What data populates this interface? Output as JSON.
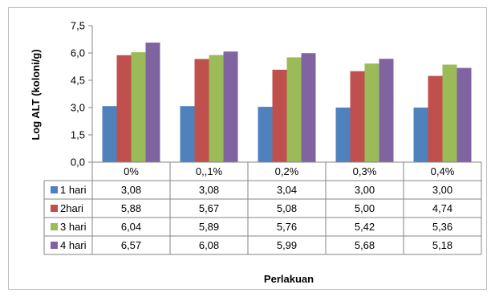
{
  "chart_data": {
    "type": "bar",
    "ylabel": "Log  ALT (koloni/g)",
    "xlabel": "Perlakuan",
    "ylim": [
      0,
      7.5
    ],
    "yticks": [
      "0,0",
      "1,5",
      "3,0",
      "4,5",
      "6,0",
      "7,5"
    ],
    "ytick_values": [
      0,
      1.5,
      3.0,
      4.5,
      6.0,
      7.5
    ],
    "categories": [
      "0%",
      "0,,1%",
      "0,2%",
      "0,3%",
      "0,4%"
    ],
    "grid": false,
    "legend_placement": "data-table",
    "series": [
      {
        "name": "1 hari",
        "color": "#4f81bd",
        "values": [
          3.08,
          3.08,
          3.04,
          3.0,
          3.0
        ],
        "labels": [
          "3,08",
          "3,08",
          "3,04",
          "3,00",
          "3,00"
        ]
      },
      {
        "name": "2hari",
        "color": "#c0504d",
        "values": [
          5.88,
          5.67,
          5.08,
          5.0,
          4.74
        ],
        "labels": [
          "5,88",
          "5,67",
          "5,08",
          "5,00",
          "4,74"
        ]
      },
      {
        "name": "3 hari",
        "color": "#9bbb59",
        "values": [
          6.04,
          5.89,
          5.76,
          5.42,
          5.36
        ],
        "labels": [
          "6,04",
          "5,89",
          "5,76",
          "5,42",
          "5,36"
        ]
      },
      {
        "name": "4 hari",
        "color": "#8064a2",
        "values": [
          6.57,
          6.08,
          5.99,
          5.68,
          5.18
        ],
        "labels": [
          "6,57",
          "6,08",
          "5,99",
          "5,68",
          "5,18"
        ]
      }
    ]
  }
}
